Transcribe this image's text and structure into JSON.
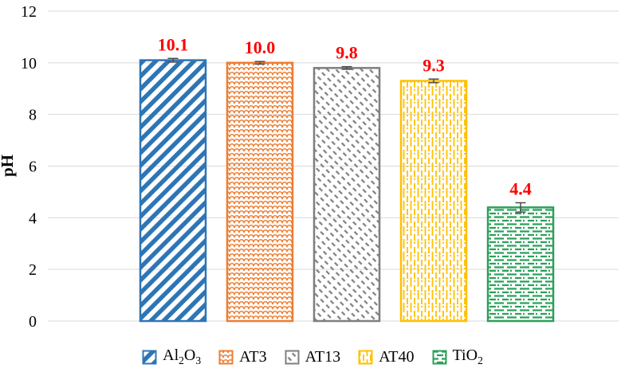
{
  "chart_data": {
    "type": "bar",
    "title": "",
    "ylabel": "pH",
    "ylim": [
      0,
      12
    ],
    "yticks": [
      0,
      2,
      4,
      6,
      8,
      10,
      12
    ],
    "grid": true,
    "legend_position": "bottom",
    "categories": [
      "Al2O3",
      "AT3",
      "AT13",
      "AT40",
      "TiO2"
    ],
    "values": [
      10.1,
      10.0,
      9.8,
      9.3,
      4.4
    ],
    "value_labels": [
      "10.1",
      "10.0",
      "9.8",
      "9.3",
      "4.4"
    ],
    "value_label_color": "#FF0000",
    "error_bars": [
      0.07,
      0.05,
      0.05,
      0.07,
      0.18
    ],
    "gridline_color": "#D9D9D9",
    "error_bar_color": "#4D4D4D",
    "axis_text_color": "#000000",
    "series_styles": [
      {
        "key": "al2o3",
        "color": "#2E75B6",
        "pattern": "diagonal-stripe"
      },
      {
        "key": "at3",
        "color": "#ED7D31",
        "pattern": "wave"
      },
      {
        "key": "at13",
        "color": "#7F7F7F",
        "pattern": "diagonal-dash"
      },
      {
        "key": "at40",
        "color": "#FFC000",
        "pattern": "vertical-dash"
      },
      {
        "key": "tio2",
        "color": "#2BA05A",
        "pattern": "horizontal-dash"
      }
    ],
    "legend_labels": [
      [
        [
          "Al",
          false
        ],
        [
          "2",
          true
        ],
        [
          "O",
          false
        ],
        [
          "3",
          true
        ]
      ],
      [
        [
          "AT3",
          false
        ]
      ],
      [
        [
          "AT13",
          false
        ]
      ],
      [
        [
          "AT40",
          false
        ]
      ],
      [
        [
          "Ti",
          false
        ],
        [
          "O",
          false
        ],
        [
          "2",
          true
        ]
      ]
    ]
  }
}
